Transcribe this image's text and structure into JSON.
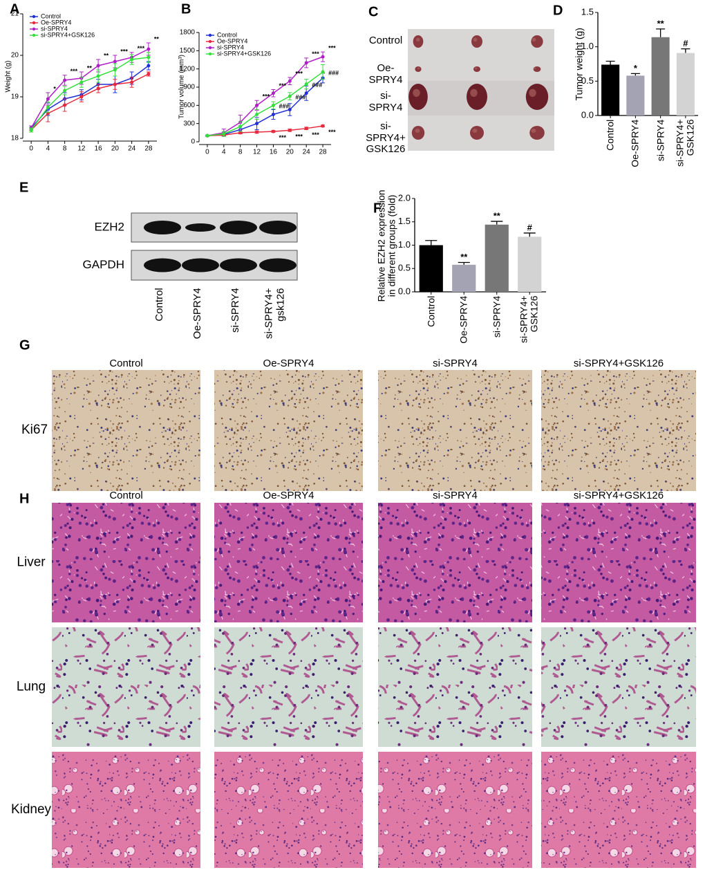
{
  "chart_data": [
    {
      "label": "A",
      "type": "line",
      "y_label": "Weight (g)",
      "x": [
        0,
        4,
        8,
        12,
        16,
        20,
        24,
        28
      ],
      "xlim": [
        -2,
        30
      ],
      "xticks": [
        0,
        4,
        8,
        12,
        16,
        20,
        24,
        28
      ],
      "ylim": [
        18,
        21
      ],
      "yticks": [
        18,
        19,
        20,
        21
      ],
      "legend": "upper left",
      "series": [
        {
          "name": "Control",
          "color": "#1f2fd6",
          "values": [
            18.25,
            18.7,
            18.95,
            19.05,
            19.3,
            19.3,
            19.45,
            19.75
          ],
          "errors": [
            0.05,
            0.15,
            0.15,
            0.12,
            0.12,
            0.2,
            0.15,
            0.1
          ]
        },
        {
          "name": "Oe-SPRY4",
          "color": "#e8283c",
          "values": [
            18.2,
            18.6,
            18.8,
            19.0,
            19.2,
            19.3,
            19.35,
            19.55
          ],
          "errors": [
            0.05,
            0.2,
            0.15,
            0.12,
            0.1,
            0.12,
            0.12,
            0.05
          ]
        },
        {
          "name": "si-SPRY4",
          "color": "#b01ec8",
          "values": [
            18.25,
            18.95,
            19.4,
            19.45,
            19.75,
            19.85,
            19.95,
            20.15
          ],
          "errors": [
            0.05,
            0.15,
            0.12,
            0.15,
            0.15,
            0.15,
            0.12,
            0.15
          ],
          "annotations": [
            null,
            "*",
            "***",
            "**",
            "**",
            "***",
            "***",
            "**"
          ]
        },
        {
          "name": "si-SPRY4+GSK126",
          "color": "#33e03a",
          "values": [
            18.2,
            18.75,
            19.15,
            19.35,
            19.5,
            19.65,
            19.9,
            19.95
          ],
          "errors": [
            0.05,
            0.12,
            0.1,
            0.12,
            0.15,
            0.15,
            0.12,
            0.12
          ]
        }
      ]
    },
    {
      "label": "B",
      "type": "line",
      "y_label": "Tumor volume (mm³)",
      "x": [
        0,
        4,
        8,
        12,
        16,
        20,
        24,
        28
      ],
      "xlim": [
        -2,
        30
      ],
      "xticks": [
        0,
        4,
        8,
        12,
        16,
        20,
        24,
        28
      ],
      "ylim": [
        0,
        1800
      ],
      "yticks": [
        0,
        300,
        600,
        900,
        1200,
        1500,
        1800
      ],
      "legend": "upper left",
      "series": [
        {
          "name": "Control",
          "color": "#1f2fd6",
          "values": [
            100,
            120,
            200,
            300,
            450,
            530,
            800,
            1050
          ],
          "errors": [
            10,
            20,
            60,
            100,
            80,
            100,
            120,
            80
          ]
        },
        {
          "name": "Oe-SPRY4",
          "color": "#e8283c",
          "values": [
            100,
            110,
            150,
            160,
            170,
            190,
            220,
            260
          ],
          "errors": [
            10,
            10,
            20,
            20,
            15,
            20,
            20,
            15
          ],
          "annotations": [
            null,
            null,
            null,
            null,
            "***",
            "***",
            "***",
            "***"
          ],
          "annotation_position": "below"
        },
        {
          "name": "si-SPRY4",
          "color": "#b01ec8",
          "values": [
            100,
            150,
            320,
            600,
            800,
            1000,
            1300,
            1400
          ],
          "errors": [
            10,
            60,
            120,
            80,
            60,
            60,
            80,
            80
          ],
          "annotations": [
            null,
            null,
            null,
            "***",
            "***",
            "***",
            "***",
            "***"
          ]
        },
        {
          "name": "si-SPRY4+GSK126",
          "color": "#33e03a",
          "values": [
            100,
            130,
            250,
            450,
            600,
            750,
            950,
            1150
          ],
          "errors": [
            10,
            40,
            80,
            80,
            60,
            60,
            80,
            120
          ],
          "annotations": [
            null,
            null,
            null,
            null,
            "###",
            "###",
            "###",
            "###"
          ],
          "annotation_position": "right"
        }
      ]
    },
    {
      "label": "D",
      "type": "bar",
      "y_label": "Tumor weight (g)",
      "categories": [
        "Control",
        "Oe-SPRY4",
        "si-SPRY4",
        "si-SPRY4+ GSK126"
      ],
      "values": [
        0.74,
        0.58,
        1.14,
        0.91
      ],
      "errors": [
        0.05,
        0.03,
        0.12,
        0.06
      ],
      "annotations": [
        null,
        "*",
        "**",
        "#"
      ],
      "colors": [
        "#000000",
        "#a3a3b3",
        "#777777",
        "#d3d3d3"
      ],
      "ylim": [
        0,
        1.5
      ],
      "yticks": [
        {
          "value": 0,
          "label": "0.0"
        },
        0.5,
        {
          "value": 1,
          "label": "1.0"
        },
        1.5
      ]
    },
    {
      "label": "F",
      "type": "bar",
      "y_label": "Relative EZH2 expression in different groups (fold)",
      "categories": [
        "Control",
        "Oe-SPRY4",
        "si-SPRY4",
        "si-SPRY4+ GSK126"
      ],
      "values": [
        1.0,
        0.58,
        1.44,
        1.18
      ],
      "errors": [
        0.1,
        0.05,
        0.07,
        0.08
      ],
      "annotations": [
        null,
        "**",
        "**",
        "#"
      ],
      "colors": [
        "#000000",
        "#a3a3b3",
        "#777777",
        "#d3d3d3"
      ],
      "ylim": [
        0,
        2
      ],
      "yticks": [
        {
          "value": 0,
          "label": "0.0"
        },
        0.5,
        {
          "value": 1,
          "label": "1.0"
        },
        1.5,
        {
          "value": 2,
          "label": "2.0"
        }
      ]
    }
  ],
  "tumor_photos": {
    "label": "C",
    "rows": [
      "Control",
      "Oe-SPRY4",
      "si-SPRY4",
      "si-SPRY4+ GSK126"
    ]
  },
  "western_blot": {
    "label": "E",
    "proteins": [
      "EZH2",
      "GAPDH"
    ],
    "lanes": [
      "Control",
      "Oe-SPRY4",
      "si-SPRY4",
      "si-SPRY4+ gsk126"
    ]
  },
  "ihc": {
    "label": "G",
    "columns": [
      "Control",
      "Oe-SPRY4",
      "si-SPRY4",
      "si-SPRY4+GSK126"
    ],
    "rows": [
      "Ki67"
    ]
  },
  "he_staining": {
    "label": "H",
    "columns": [
      "Control",
      "Oe-SPRY4",
      "si-SPRY4",
      "si-SPRY4+GSK126"
    ],
    "rows": [
      "Liver",
      "Lung",
      "Kidney"
    ]
  }
}
